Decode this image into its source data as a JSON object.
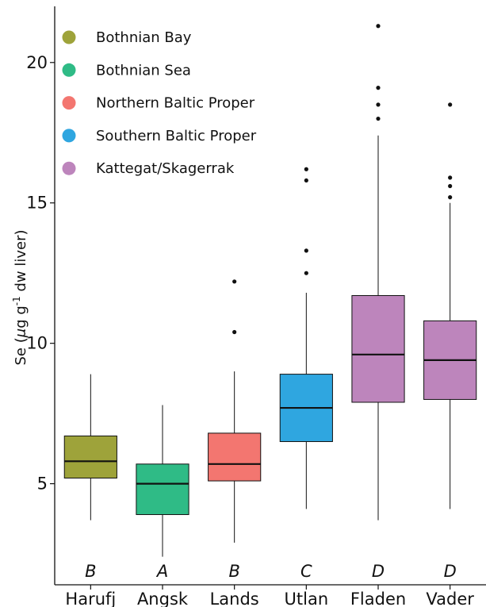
{
  "chart_data": {
    "type": "box",
    "ylabel": {
      "prefix": "Se (",
      "mu": "μ",
      "unit": "g g",
      "exp": "-1",
      "suffix": " dw liver)"
    },
    "ylim": [
      1.4,
      22.0
    ],
    "yticks": [
      5,
      10,
      15,
      20
    ],
    "grid": false,
    "legend_position": "top-left",
    "categories": [
      "Harufj",
      "Angsk",
      "Lands",
      "Utlan",
      "Fladen",
      "Vader"
    ],
    "group_letters": [
      "B",
      "A",
      "B",
      "C",
      "D",
      "D"
    ],
    "legend": [
      {
        "label": "Bothnian Bay",
        "color": "#9ea33a"
      },
      {
        "label": "Bothnian Sea",
        "color": "#2fbb86"
      },
      {
        "label": "Northern Baltic Proper",
        "color": "#f37670"
      },
      {
        "label": "Southern Baltic Proper",
        "color": "#2fa6e0"
      },
      {
        "label": "Kattegat/Skagerrak",
        "color": "#bd85bc"
      }
    ],
    "boxes": [
      {
        "category": "Harufj",
        "color": "#9ea33a",
        "whisker_low": 3.7,
        "q1": 5.2,
        "median": 5.8,
        "q3": 6.7,
        "whisker_high": 8.9,
        "outliers": []
      },
      {
        "category": "Angsk",
        "color": "#2fbb86",
        "whisker_low": 2.4,
        "q1": 3.9,
        "median": 5.0,
        "q3": 5.7,
        "whisker_high": 7.8,
        "outliers": []
      },
      {
        "category": "Lands",
        "color": "#f37670",
        "whisker_low": 2.9,
        "q1": 5.1,
        "median": 5.7,
        "q3": 6.8,
        "whisker_high": 9.0,
        "outliers": [
          10.4,
          12.2
        ]
      },
      {
        "category": "Utlan",
        "color": "#2fa6e0",
        "whisker_low": 4.1,
        "q1": 6.5,
        "median": 7.7,
        "q3": 8.9,
        "whisker_high": 11.8,
        "outliers": [
          12.5,
          13.3,
          15.8,
          16.2
        ]
      },
      {
        "category": "Fladen",
        "color": "#bd85bc",
        "whisker_low": 3.7,
        "q1": 7.9,
        "median": 9.6,
        "q3": 11.7,
        "whisker_high": 17.4,
        "outliers": [
          18.0,
          18.5,
          19.1,
          21.3
        ]
      },
      {
        "category": "Vader",
        "color": "#bd85bc",
        "whisker_low": 4.1,
        "q1": 8.0,
        "median": 9.4,
        "q3": 10.8,
        "whisker_high": 15.0,
        "outliers": [
          15.2,
          15.6,
          15.9,
          18.5
        ]
      }
    ]
  }
}
